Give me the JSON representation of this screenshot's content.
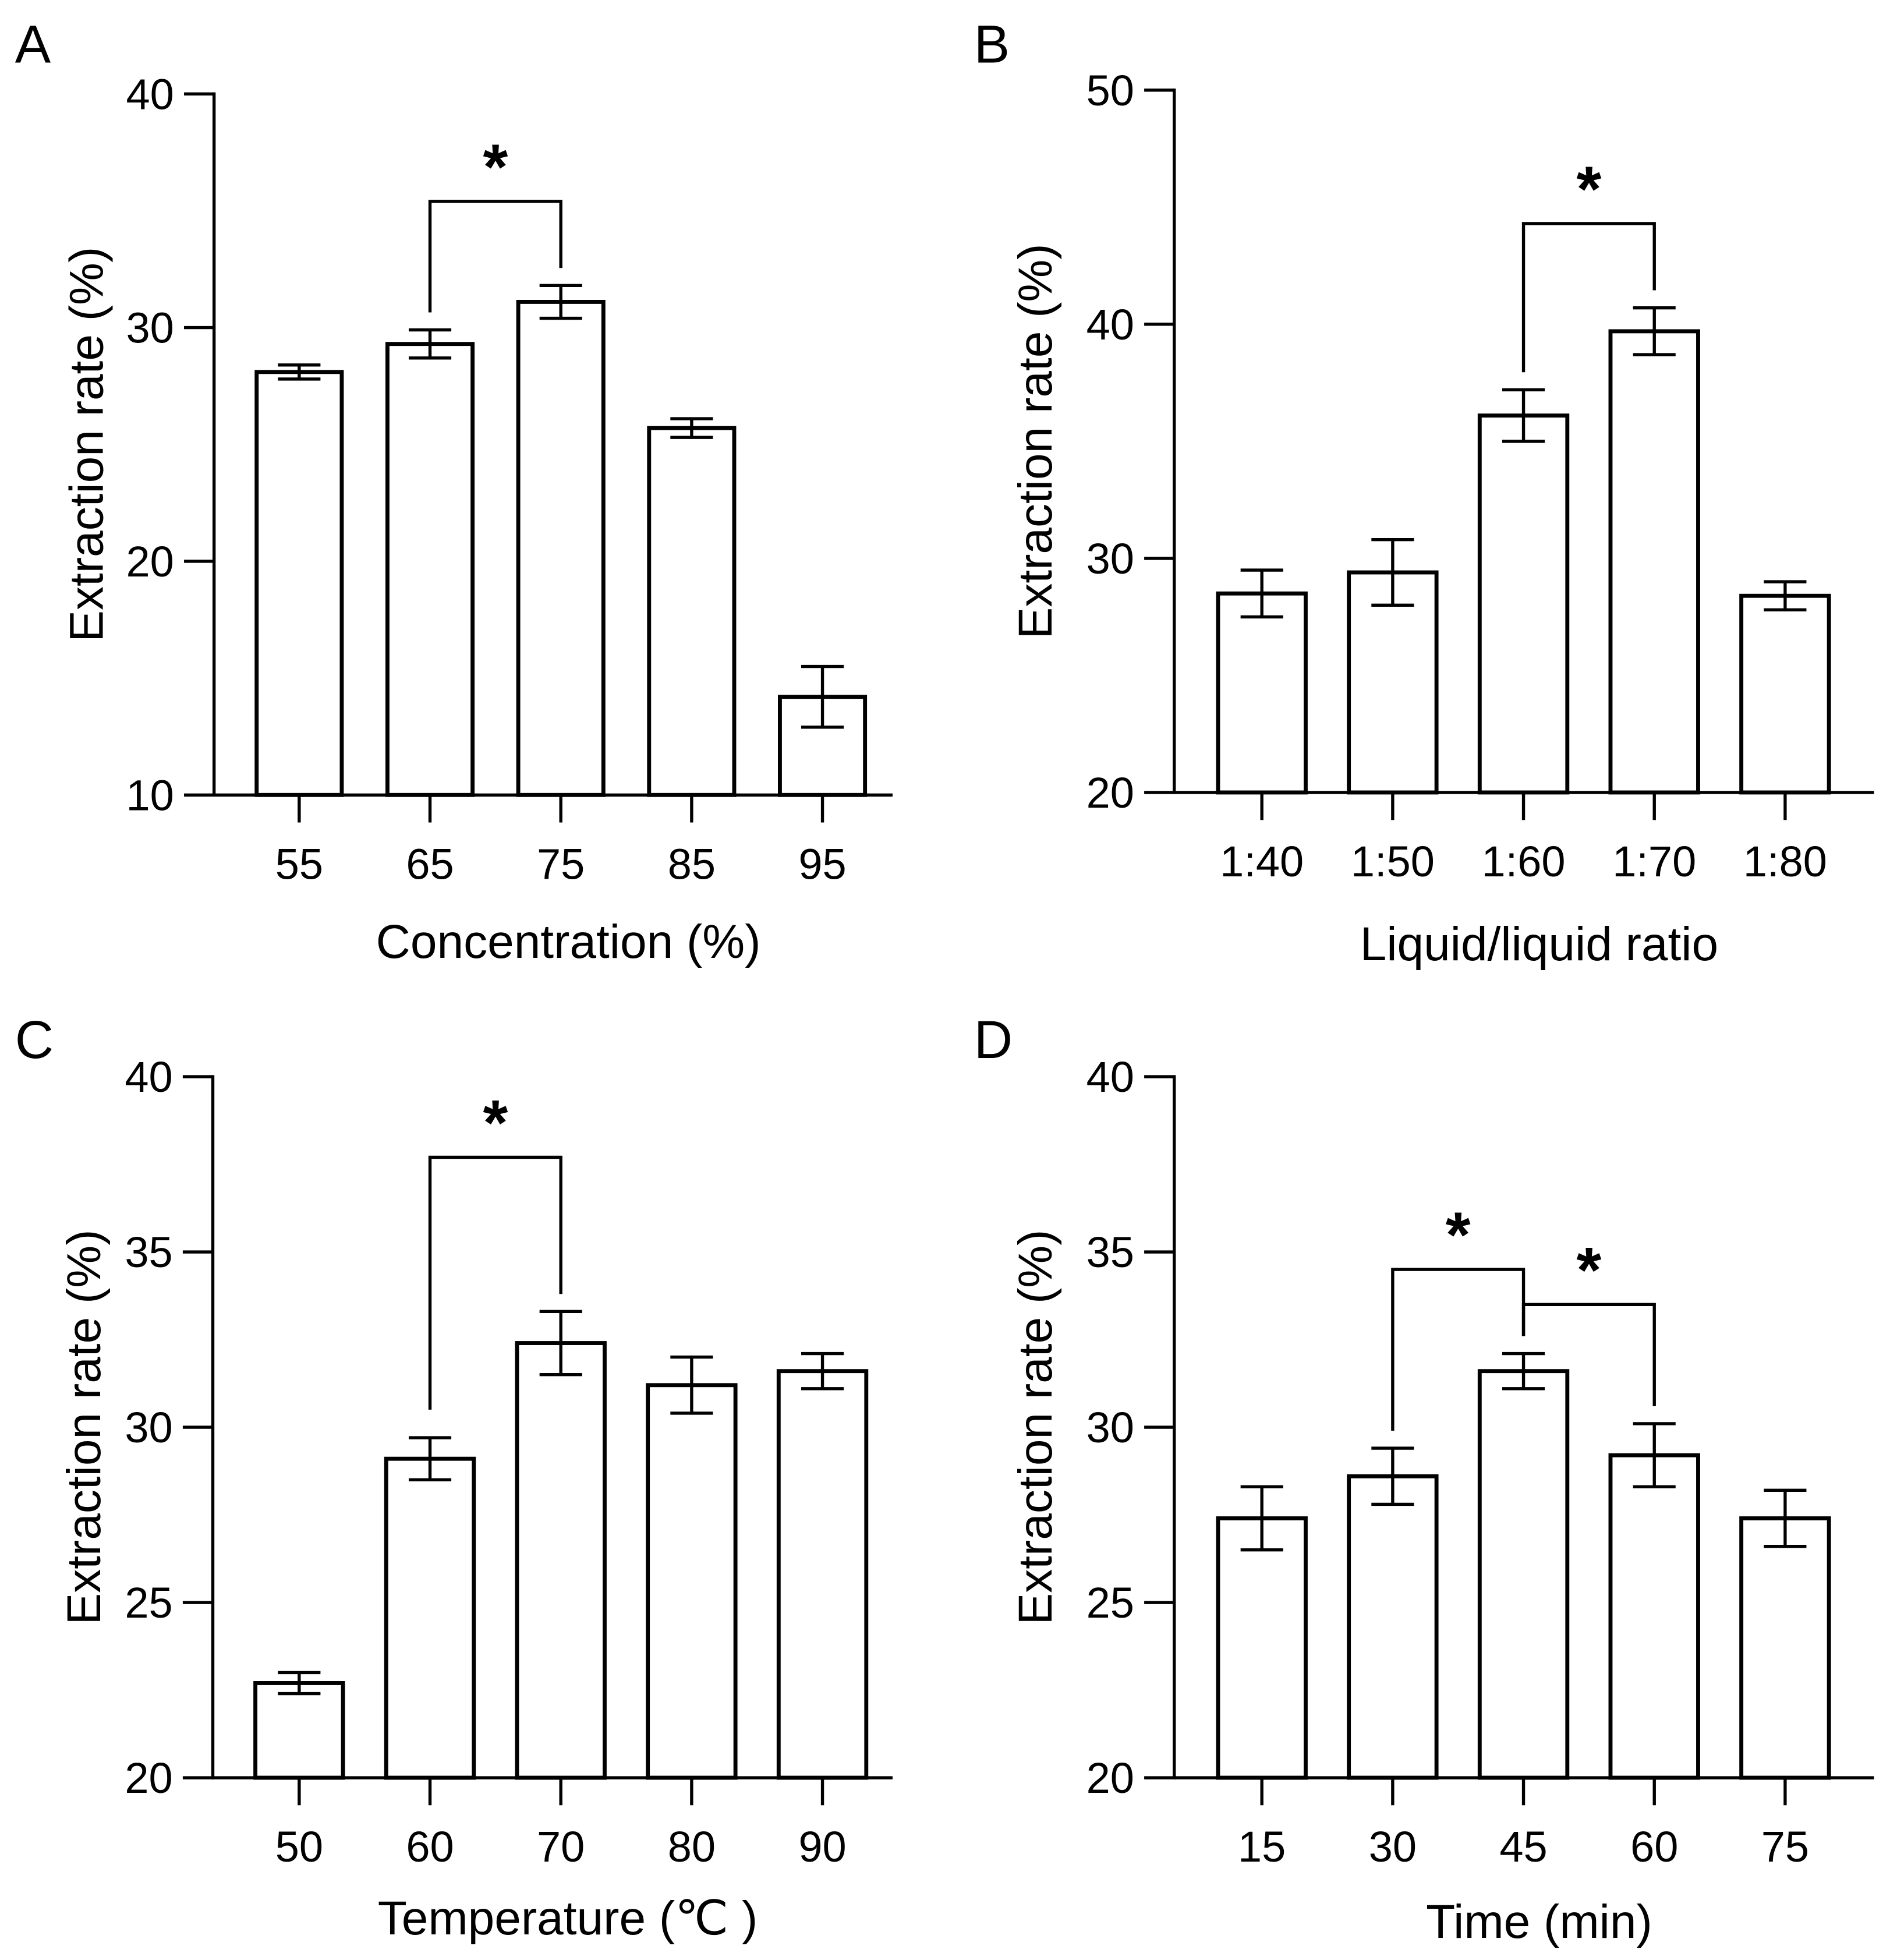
{
  "chart_data": [
    {
      "panel": "A",
      "type": "bar",
      "categories": [
        "55",
        "65",
        "75",
        "85",
        "95"
      ],
      "values": [
        28.1,
        29.3,
        31.1,
        25.7,
        14.2
      ],
      "errors": [
        0.3,
        0.6,
        0.7,
        0.4,
        1.3
      ],
      "ylim": [
        10,
        40
      ],
      "yticks": [
        "10",
        "20",
        "30",
        "40"
      ],
      "ytick_values": [
        10,
        20,
        30,
        40
      ],
      "xlabel": "Concentration (%)",
      "ylabel": "Extraction rate (%)",
      "significance": [
        {
          "from": 1,
          "to": 2,
          "label": "*"
        }
      ]
    },
    {
      "panel": "B",
      "type": "bar",
      "categories": [
        "1:40",
        "1:50",
        "1:60",
        "1:70",
        "1:80"
      ],
      "values": [
        28.5,
        29.4,
        36.1,
        39.7,
        28.4
      ],
      "errors": [
        1.0,
        1.4,
        1.1,
        1.0,
        0.6
      ],
      "ylim": [
        20,
        50
      ],
      "yticks": [
        "20",
        "30",
        "40",
        "50"
      ],
      "ytick_values": [
        20,
        30,
        40,
        50
      ],
      "xlabel": "Liquid/liquid ratio",
      "ylabel": "Extraction rate (%)",
      "significance": [
        {
          "from": 2,
          "to": 3,
          "label": "*"
        }
      ]
    },
    {
      "panel": "C",
      "type": "bar",
      "categories": [
        "50",
        "60",
        "70",
        "80",
        "90"
      ],
      "values": [
        22.7,
        29.1,
        32.4,
        31.2,
        31.6
      ],
      "errors": [
        0.3,
        0.6,
        0.9,
        0.8,
        0.5
      ],
      "ylim": [
        20,
        40
      ],
      "yticks": [
        "20",
        "25",
        "30",
        "35",
        "40"
      ],
      "ytick_values": [
        20,
        25,
        30,
        35,
        40
      ],
      "xlabel": "Temperature (℃ )",
      "ylabel": "Extraction rate (%)",
      "significance": [
        {
          "from": 1,
          "to": 2,
          "label": "*"
        }
      ]
    },
    {
      "panel": "D",
      "type": "bar",
      "categories": [
        "15",
        "30",
        "45",
        "60",
        "75"
      ],
      "values": [
        27.4,
        28.6,
        31.6,
        29.2,
        27.4
      ],
      "errors": [
        0.9,
        0.8,
        0.5,
        0.9,
        0.8
      ],
      "ylim": [
        20,
        40
      ],
      "yticks": [
        "20",
        "25",
        "30",
        "35",
        "40"
      ],
      "ytick_values": [
        20,
        25,
        30,
        35,
        40
      ],
      "xlabel": "Time (min)",
      "ylabel": "Extraction rate (%)",
      "significance": [
        {
          "from": 1,
          "to": 2,
          "label": "*"
        },
        {
          "from": 2,
          "to": 3,
          "label": "*"
        }
      ]
    }
  ]
}
